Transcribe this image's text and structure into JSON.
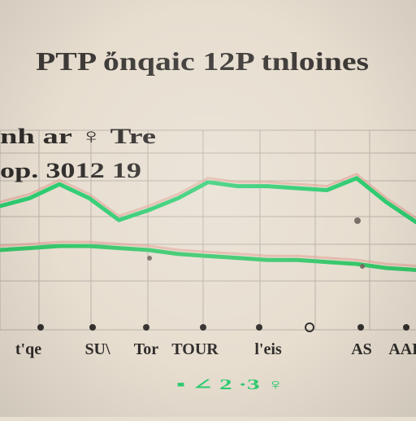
{
  "chart_data": {
    "type": "line",
    "title": "PTP ὄnqaic 12P tnloines",
    "subtitle_line1": "nh ar ♀ Tre",
    "subtitle_line2": "op. 3012 19",
    "categories": [
      "t'qe",
      "SU\\",
      "Tor",
      "TOUR",
      "l'eis",
      "AS",
      "AAR"
    ],
    "x": [
      0,
      1,
      2,
      3,
      4,
      5,
      6,
      7,
      8,
      9,
      10,
      11,
      12,
      13,
      14
    ],
    "ylim": [
      0,
      10
    ],
    "grid": true,
    "legend_position": "bottom",
    "legend_glyphs": "▪ ∠ 2 ·3 ♀",
    "series": [
      {
        "color": "#2ecc71",
        "values": [
          6.2,
          6.6,
          7.3,
          6.6,
          5.5,
          6.0,
          6.6,
          7.4,
          7.2,
          7.2,
          7.1,
          7.0,
          7.6,
          6.4,
          5.4
        ]
      },
      {
        "color": "#36c76a",
        "values": [
          4.0,
          4.1,
          4.2,
          4.2,
          4.1,
          4.0,
          3.8,
          3.7,
          3.6,
          3.5,
          3.5,
          3.4,
          3.3,
          3.1,
          3.0
        ]
      }
    ],
    "shadow_color": "#e29a8c"
  }
}
